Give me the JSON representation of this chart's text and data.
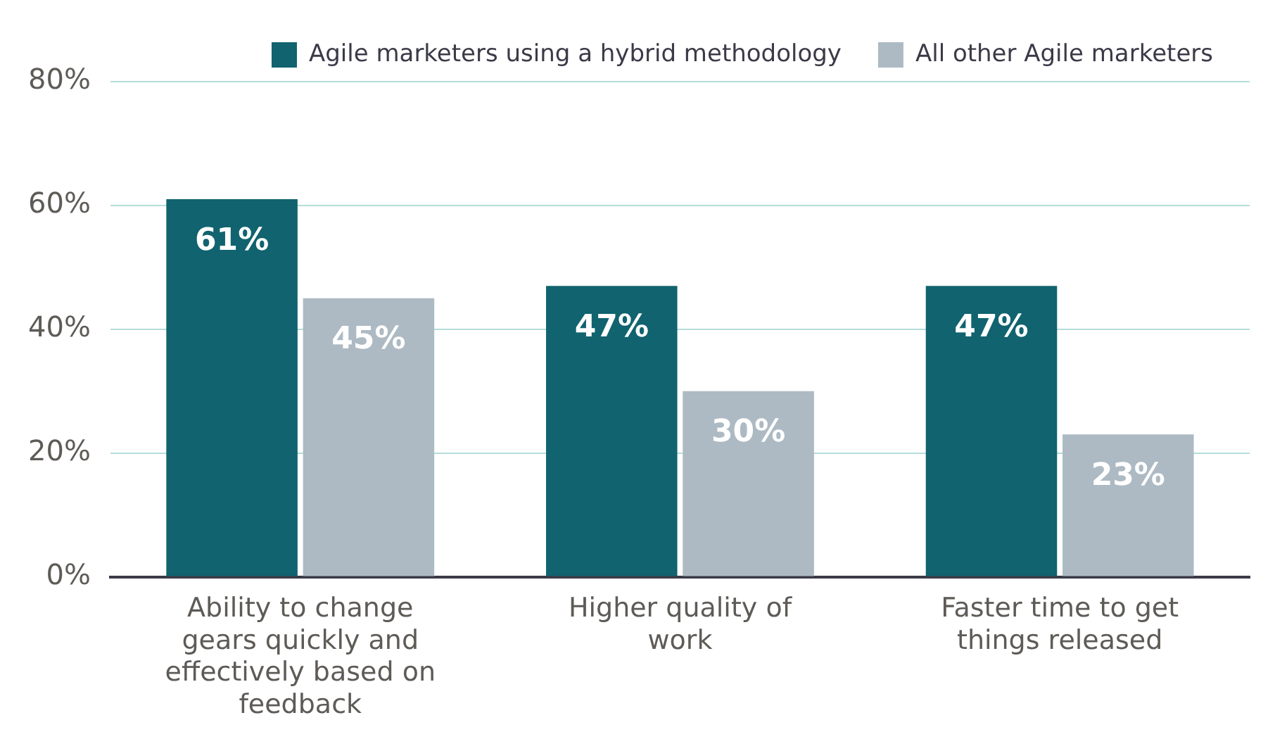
{
  "chart_data": {
    "type": "bar",
    "categories": [
      "Ability to change gears quickly and effectively based on feedback",
      "Higher quality of work",
      "Faster time to get things released"
    ],
    "series": [
      {
        "name": "Agile marketers using a hybrid methodology",
        "color": "#10636f",
        "values": [
          61,
          47,
          47
        ],
        "value_labels": [
          "61%",
          "47%",
          "47%"
        ]
      },
      {
        "name": "All other Agile marketers",
        "color": "#adbac3",
        "values": [
          45,
          30,
          23
        ],
        "value_labels": [
          "45%",
          "30%",
          "23%"
        ]
      }
    ],
    "ylim": [
      0,
      80
    ],
    "yticks": [
      {
        "value": 0,
        "label": "0%"
      },
      {
        "value": 20,
        "label": "20%"
      },
      {
        "value": 40,
        "label": "40%"
      },
      {
        "value": 60,
        "label": "60%"
      },
      {
        "value": 80,
        "label": "80%"
      }
    ],
    "grid": "y",
    "legend": "top right"
  }
}
